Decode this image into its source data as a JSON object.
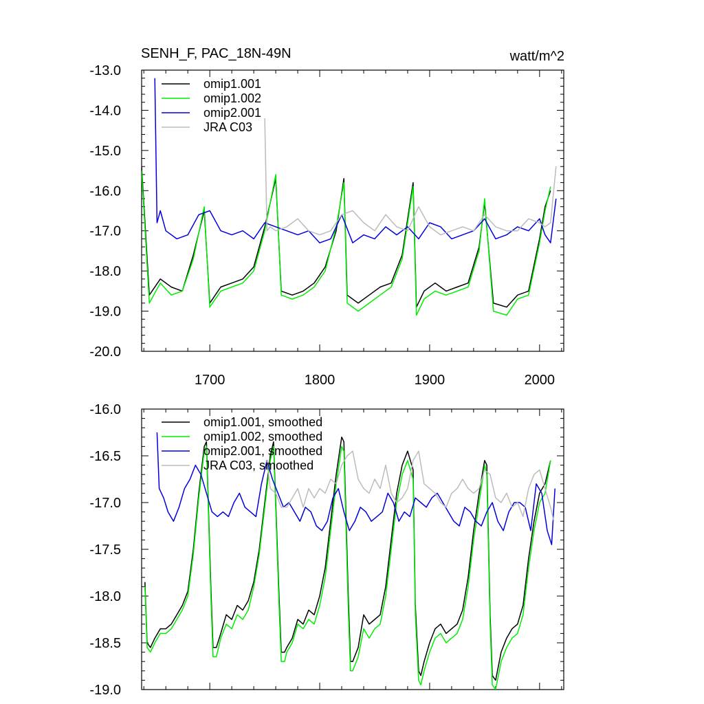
{
  "figure": {
    "title": "SENH_F, PAC_18N-49N",
    "units": "watt/m^2"
  },
  "chart_data": [
    {
      "type": "line",
      "title": "SENH_F, PAC_18N-49N",
      "units": "watt/m^2",
      "xlim": [
        1638,
        2022
      ],
      "ylim": [
        -20.0,
        -13.0
      ],
      "xticks": [
        1700,
        1800,
        1900,
        2000
      ],
      "xtick_labels": [
        "1700",
        "1800",
        "1900",
        "2000"
      ],
      "yticks": [
        -13.0,
        -14.0,
        -15.0,
        -16.0,
        -17.0,
        -18.0,
        -19.0,
        -20.0
      ],
      "ytick_labels": [
        "-13.0",
        "-14.0",
        "-15.0",
        "-16.0",
        "-17.0",
        "-18.0",
        "-19.0",
        "-20.0"
      ],
      "legend_position": "top-left",
      "series": [
        {
          "name": "omip1.001",
          "color": "#000000",
          "x": [
            1638,
            1645,
            1655,
            1665,
            1675,
            1685,
            1695,
            1700,
            1710,
            1720,
            1730,
            1740,
            1750,
            1760,
            1765,
            1775,
            1785,
            1795,
            1805,
            1815,
            1822,
            1825,
            1835,
            1845,
            1855,
            1865,
            1875,
            1885,
            1888,
            1895,
            1905,
            1915,
            1925,
            1935,
            1945,
            1950,
            1958,
            1970,
            1980,
            1990,
            2000,
            2005,
            2010
          ],
          "y": [
            -15.4,
            -18.6,
            -18.2,
            -18.4,
            -18.5,
            -17.6,
            -16.5,
            -18.8,
            -18.4,
            -18.3,
            -18.2,
            -17.9,
            -16.9,
            -15.7,
            -18.5,
            -18.6,
            -18.5,
            -18.3,
            -17.9,
            -17.0,
            -15.7,
            -18.6,
            -18.8,
            -18.6,
            -18.4,
            -18.3,
            -17.6,
            -15.8,
            -18.9,
            -18.5,
            -18.3,
            -18.5,
            -18.4,
            -18.3,
            -17.4,
            -16.3,
            -18.8,
            -18.9,
            -18.6,
            -18.5,
            -17.2,
            -16.4,
            -16.0
          ]
        },
        {
          "name": "omip1.002",
          "color": "#00ee00",
          "x": [
            1638,
            1645,
            1655,
            1665,
            1675,
            1685,
            1695,
            1700,
            1710,
            1720,
            1730,
            1740,
            1750,
            1760,
            1765,
            1775,
            1785,
            1795,
            1805,
            1815,
            1822,
            1825,
            1835,
            1845,
            1855,
            1865,
            1875,
            1885,
            1888,
            1895,
            1905,
            1915,
            1925,
            1935,
            1945,
            1950,
            1958,
            1970,
            1980,
            1990,
            2000,
            2005,
            2010
          ],
          "y": [
            -15.5,
            -18.8,
            -18.3,
            -18.6,
            -18.5,
            -17.7,
            -16.4,
            -18.9,
            -18.5,
            -18.4,
            -18.3,
            -18.0,
            -17.0,
            -15.6,
            -18.6,
            -18.7,
            -18.6,
            -18.4,
            -18.0,
            -16.9,
            -15.8,
            -18.8,
            -19.0,
            -18.8,
            -18.6,
            -18.4,
            -17.7,
            -15.9,
            -19.1,
            -18.7,
            -18.5,
            -18.6,
            -18.5,
            -18.4,
            -17.5,
            -16.2,
            -19.0,
            -19.1,
            -18.7,
            -18.6,
            -17.3,
            -16.5,
            -15.9
          ]
        },
        {
          "name": "omip2.001",
          "color": "#0000dd",
          "x": [
            1650,
            1652,
            1655,
            1660,
            1670,
            1680,
            1690,
            1700,
            1710,
            1720,
            1730,
            1740,
            1750,
            1760,
            1770,
            1780,
            1790,
            1800,
            1810,
            1820,
            1830,
            1840,
            1850,
            1860,
            1870,
            1880,
            1890,
            1900,
            1910,
            1920,
            1930,
            1940,
            1950,
            1960,
            1970,
            1980,
            1990,
            2000,
            2005,
            2010,
            2015
          ],
          "y": [
            -13.2,
            -16.8,
            -16.5,
            -17.0,
            -17.2,
            -17.1,
            -16.6,
            -16.5,
            -17.0,
            -17.1,
            -17.0,
            -17.2,
            -16.8,
            -16.9,
            -17.0,
            -17.1,
            -17.0,
            -17.3,
            -17.2,
            -16.6,
            -17.3,
            -17.1,
            -17.2,
            -16.9,
            -17.1,
            -16.9,
            -17.2,
            -16.8,
            -16.9,
            -17.2,
            -17.1,
            -17.0,
            -16.7,
            -17.2,
            -17.1,
            -16.9,
            -17.0,
            -16.7,
            -17.1,
            -17.3,
            -16.2
          ]
        },
        {
          "name": "JRA C03",
          "color": "#bbbbbb",
          "x": [
            1750,
            1752,
            1755,
            1760,
            1770,
            1780,
            1790,
            1800,
            1810,
            1820,
            1830,
            1840,
            1850,
            1860,
            1870,
            1880,
            1890,
            1900,
            1910,
            1920,
            1930,
            1940,
            1950,
            1960,
            1970,
            1980,
            1990,
            2000,
            2005,
            2010,
            2015
          ],
          "y": [
            -14.2,
            -17.0,
            -16.9,
            -17.0,
            -16.9,
            -16.7,
            -17.0,
            -17.1,
            -17.0,
            -16.6,
            -16.5,
            -16.8,
            -17.0,
            -16.6,
            -16.9,
            -17.0,
            -16.4,
            -16.9,
            -17.1,
            -17.0,
            -16.9,
            -17.0,
            -16.6,
            -16.9,
            -17.0,
            -17.0,
            -16.7,
            -16.8,
            -16.9,
            -16.8,
            -15.4
          ]
        }
      ]
    },
    {
      "type": "line",
      "title": "",
      "xlim": [
        1638,
        2022
      ],
      "ylim": [
        -19.0,
        -16.0
      ],
      "xticks": [
        1700,
        1800,
        1900,
        2000
      ],
      "yticks": [
        -16.0,
        -16.5,
        -17.0,
        -17.5,
        -18.0,
        -18.5,
        -19.0
      ],
      "ytick_labels": [
        "-16.0",
        "-16.5",
        "-17.0",
        "-17.5",
        "-18.0",
        "-18.5",
        "-19.0"
      ],
      "legend_position": "top-left",
      "series": [
        {
          "name": "omip1.001, smoothed",
          "color": "#000000",
          "x": [
            1641,
            1643,
            1646,
            1650,
            1655,
            1660,
            1665,
            1670,
            1675,
            1680,
            1685,
            1690,
            1695,
            1697,
            1701,
            1703,
            1706,
            1710,
            1715,
            1720,
            1725,
            1730,
            1735,
            1740,
            1745,
            1750,
            1755,
            1758,
            1763,
            1765,
            1768,
            1770,
            1775,
            1780,
            1785,
            1790,
            1795,
            1800,
            1805,
            1810,
            1815,
            1820,
            1822,
            1826,
            1828,
            1830,
            1835,
            1840,
            1845,
            1850,
            1855,
            1860,
            1865,
            1870,
            1875,
            1880,
            1885,
            1887,
            1890,
            1892,
            1895,
            1900,
            1905,
            1910,
            1915,
            1920,
            1925,
            1930,
            1935,
            1940,
            1945,
            1950,
            1952,
            1955,
            1957,
            1960,
            1965,
            1970,
            1975,
            1980,
            1985,
            1990,
            1995,
            2000,
            2005,
            2010
          ],
          "y": [
            -17.85,
            -18.5,
            -18.55,
            -18.45,
            -18.35,
            -18.35,
            -18.3,
            -18.2,
            -18.1,
            -17.95,
            -17.5,
            -16.9,
            -16.4,
            -16.35,
            -17.9,
            -18.55,
            -18.55,
            -18.4,
            -18.2,
            -18.25,
            -18.1,
            -18.15,
            -18.05,
            -17.85,
            -17.5,
            -17.0,
            -16.5,
            -16.35,
            -18.0,
            -18.6,
            -18.6,
            -18.55,
            -18.45,
            -18.25,
            -18.3,
            -18.15,
            -18.2,
            -18.0,
            -17.7,
            -17.2,
            -16.7,
            -16.3,
            -16.35,
            -18.0,
            -18.7,
            -18.7,
            -18.55,
            -18.2,
            -18.3,
            -18.25,
            -18.2,
            -17.9,
            -17.4,
            -16.9,
            -16.6,
            -16.45,
            -16.65,
            -18.1,
            -18.8,
            -18.85,
            -18.7,
            -18.5,
            -18.35,
            -18.3,
            -18.4,
            -18.35,
            -18.3,
            -18.15,
            -17.8,
            -17.3,
            -16.9,
            -16.55,
            -16.6,
            -18.2,
            -18.85,
            -18.9,
            -18.6,
            -18.45,
            -18.35,
            -18.3,
            -18.1,
            -17.6,
            -17.2,
            -16.9,
            -16.8,
            -16.55
          ]
        },
        {
          "name": "omip1.002, smoothed",
          "color": "#00ee00",
          "x": [
            1641,
            1643,
            1646,
            1650,
            1655,
            1660,
            1665,
            1670,
            1675,
            1680,
            1685,
            1690,
            1695,
            1697,
            1701,
            1703,
            1706,
            1710,
            1715,
            1720,
            1725,
            1730,
            1735,
            1740,
            1745,
            1750,
            1755,
            1758,
            1763,
            1765,
            1768,
            1770,
            1775,
            1780,
            1785,
            1790,
            1795,
            1800,
            1805,
            1810,
            1815,
            1820,
            1822,
            1826,
            1828,
            1830,
            1835,
            1840,
            1845,
            1850,
            1855,
            1860,
            1865,
            1870,
            1875,
            1880,
            1885,
            1887,
            1890,
            1892,
            1895,
            1900,
            1905,
            1910,
            1915,
            1920,
            1925,
            1930,
            1935,
            1940,
            1945,
            1950,
            1952,
            1955,
            1957,
            1960,
            1965,
            1970,
            1975,
            1980,
            1985,
            1990,
            1995,
            2000,
            2005,
            2010
          ],
          "y": [
            -17.9,
            -18.55,
            -18.6,
            -18.5,
            -18.4,
            -18.4,
            -18.35,
            -18.25,
            -18.15,
            -18.0,
            -17.55,
            -16.95,
            -16.45,
            -16.4,
            -18.0,
            -18.65,
            -18.65,
            -18.45,
            -18.3,
            -18.35,
            -18.2,
            -18.25,
            -18.15,
            -17.9,
            -17.55,
            -17.05,
            -16.55,
            -16.4,
            -18.1,
            -18.7,
            -18.7,
            -18.6,
            -18.5,
            -18.3,
            -18.35,
            -18.25,
            -18.3,
            -18.1,
            -17.8,
            -17.3,
            -16.8,
            -16.4,
            -16.45,
            -18.15,
            -18.8,
            -18.8,
            -18.65,
            -18.35,
            -18.45,
            -18.35,
            -18.3,
            -18.0,
            -17.5,
            -17.0,
            -16.7,
            -16.55,
            -16.75,
            -18.2,
            -18.9,
            -18.95,
            -18.8,
            -18.6,
            -18.45,
            -18.4,
            -18.5,
            -18.45,
            -18.4,
            -18.25,
            -17.9,
            -17.4,
            -17.0,
            -16.6,
            -16.7,
            -18.3,
            -18.95,
            -19.0,
            -18.7,
            -18.55,
            -18.45,
            -18.4,
            -18.2,
            -17.7,
            -17.3,
            -17.0,
            -16.9,
            -16.55
          ]
        },
        {
          "name": "omip2.001, smoothed",
          "color": "#0000dd",
          "x": [
            1652,
            1654,
            1658,
            1662,
            1667,
            1672,
            1677,
            1682,
            1687,
            1692,
            1697,
            1702,
            1707,
            1712,
            1717,
            1722,
            1727,
            1732,
            1737,
            1742,
            1747,
            1752,
            1757,
            1762,
            1767,
            1772,
            1777,
            1782,
            1787,
            1792,
            1797,
            1802,
            1807,
            1812,
            1817,
            1822,
            1827,
            1832,
            1837,
            1842,
            1847,
            1852,
            1857,
            1862,
            1867,
            1872,
            1877,
            1882,
            1887,
            1892,
            1897,
            1902,
            1907,
            1912,
            1917,
            1922,
            1927,
            1932,
            1937,
            1942,
            1947,
            1952,
            1957,
            1962,
            1967,
            1972,
            1977,
            1982,
            1987,
            1992,
            1997,
            2002,
            2007,
            2011,
            2014
          ],
          "y": [
            -16.25,
            -16.85,
            -16.95,
            -17.1,
            -17.2,
            -17.05,
            -16.85,
            -16.75,
            -16.6,
            -16.7,
            -16.9,
            -17.1,
            -17.15,
            -17.1,
            -17.15,
            -17.0,
            -16.9,
            -17.05,
            -17.1,
            -17.15,
            -16.8,
            -16.55,
            -16.75,
            -16.9,
            -17.05,
            -17.0,
            -17.1,
            -17.2,
            -17.05,
            -17.1,
            -17.25,
            -17.3,
            -17.2,
            -16.95,
            -16.85,
            -17.1,
            -17.3,
            -17.2,
            -17.05,
            -17.1,
            -17.2,
            -17.15,
            -17.1,
            -16.9,
            -17.0,
            -17.2,
            -17.1,
            -17.15,
            -16.95,
            -17.0,
            -17.05,
            -16.95,
            -16.9,
            -17.0,
            -17.1,
            -17.2,
            -17.25,
            -17.05,
            -17.1,
            -17.2,
            -17.25,
            -17.1,
            -17.0,
            -17.2,
            -17.3,
            -17.1,
            -17.0,
            -17.0,
            -17.05,
            -17.3,
            -16.8,
            -16.9,
            -17.3,
            -17.45,
            -16.85
          ]
        },
        {
          "name": "JRA C03, smoothed",
          "color": "#bbbbbb",
          "x": [
            1752,
            1755,
            1760,
            1765,
            1770,
            1775,
            1780,
            1785,
            1790,
            1795,
            1800,
            1805,
            1810,
            1815,
            1820,
            1825,
            1830,
            1835,
            1840,
            1845,
            1850,
            1855,
            1860,
            1865,
            1870,
            1875,
            1880,
            1885,
            1890,
            1895,
            1900,
            1905,
            1910,
            1915,
            1920,
            1925,
            1930,
            1935,
            1940,
            1945,
            1950,
            1955,
            1960,
            1965,
            1970,
            1975,
            1980,
            1985,
            1990,
            1995,
            2000,
            2005,
            2010,
            2013
          ],
          "y": [
            -16.55,
            -16.85,
            -16.9,
            -17.05,
            -17.05,
            -16.95,
            -16.85,
            -17.05,
            -16.85,
            -16.95,
            -16.85,
            -16.9,
            -16.75,
            -16.8,
            -16.6,
            -16.5,
            -16.45,
            -16.75,
            -16.85,
            -16.9,
            -16.75,
            -16.85,
            -16.6,
            -16.9,
            -17.0,
            -16.95,
            -16.85,
            -16.55,
            -16.45,
            -16.8,
            -16.85,
            -16.9,
            -17.0,
            -17.05,
            -16.9,
            -16.85,
            -16.75,
            -16.85,
            -16.9,
            -16.85,
            -16.65,
            -16.7,
            -16.95,
            -17.0,
            -16.9,
            -17.05,
            -17.0,
            -17.15,
            -16.85,
            -16.7,
            -16.65,
            -16.85,
            -17.05,
            -17.2
          ]
        }
      ]
    }
  ]
}
